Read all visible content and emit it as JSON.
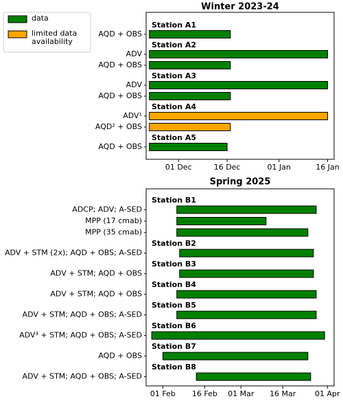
{
  "chart_data": [
    {
      "type": "timeline",
      "title": "Winter 2023-24",
      "legend": [
        {
          "name": "data",
          "color": "#008000"
        },
        {
          "name": "limited data availability",
          "color": "#ffa500"
        }
      ],
      "xlim": [
        -10,
        48
      ],
      "xticks": [
        {
          "value": 0,
          "label": "01 Dec"
        },
        {
          "value": 15,
          "label": "16 Dec"
        },
        {
          "value": 31,
          "label": "01 Jan"
        },
        {
          "value": 46,
          "label": "16 Jan"
        }
      ],
      "groups": [
        {
          "name": "Station A1",
          "rows": [
            {
              "label": "AQD + OBS",
              "start": -9,
              "end": 16,
              "color": "#008000"
            }
          ]
        },
        {
          "name": "Station A2",
          "rows": [
            {
              "label": "ADV",
              "start": -9,
              "end": 46,
              "color": "#008000"
            },
            {
              "label": "AQD + OBS",
              "start": -9,
              "end": 16,
              "color": "#008000"
            }
          ]
        },
        {
          "name": "Station A3",
          "rows": [
            {
              "label": "ADV",
              "start": -9,
              "end": 46,
              "color": "#008000"
            },
            {
              "label": "AQD + OBS",
              "start": -9,
              "end": 16,
              "color": "#008000"
            }
          ]
        },
        {
          "name": "Station A4",
          "rows": [
            {
              "label": "ADV¹",
              "start": -9,
              "end": 46,
              "color": "#ffa500"
            },
            {
              "label": "AQD² + OBS",
              "start": -9,
              "end": 16,
              "color": "#ffa500"
            }
          ]
        },
        {
          "name": "Station A5",
          "rows": [
            {
              "label": "AQD + OBS",
              "start": -9,
              "end": 15,
              "color": "#008000"
            }
          ]
        }
      ]
    },
    {
      "type": "timeline",
      "title": "Spring 2025",
      "xlim": [
        -6,
        61.4
      ],
      "xticks": [
        {
          "value": 0,
          "label": "01 Feb"
        },
        {
          "value": 15,
          "label": "16 Feb"
        },
        {
          "value": 28,
          "label": "01 Mar"
        },
        {
          "value": 43,
          "label": "16 Mar"
        },
        {
          "value": 59,
          "label": "01 Apr"
        }
      ],
      "groups": [
        {
          "name": "Station B1",
          "rows": [
            {
              "label": "ADCP; ADV; A-SED",
              "start": 5,
              "end": 55,
              "color": "#008000"
            },
            {
              "label": "MPP (17 cmab)",
              "start": 5,
              "end": 37,
              "color": "#008000"
            },
            {
              "label": "MPP (35 cmab)",
              "start": 5,
              "end": 52,
              "color": "#008000"
            }
          ]
        },
        {
          "name": "Station B2",
          "rows": [
            {
              "label": "ADV + STM (2x); AQD + OBS; A-SED",
              "start": 6,
              "end": 54,
              "color": "#008000"
            }
          ]
        },
        {
          "name": "Station B3",
          "rows": [
            {
              "label": "ADV + STM; AQD + OBS",
              "start": 6,
              "end": 54,
              "color": "#008000"
            }
          ]
        },
        {
          "name": "Station B4",
          "rows": [
            {
              "label": "ADV + STM; AQD + OBS",
              "start": 5,
              "end": 55,
              "color": "#008000"
            }
          ]
        },
        {
          "name": "Station B5",
          "rows": [
            {
              "label": "ADV + STM; AQD + OBS; A-SED",
              "start": 5,
              "end": 55,
              "color": "#008000"
            }
          ]
        },
        {
          "name": "Station B6",
          "rows": [
            {
              "label": "ADV³ + STM; AQD + OBS; A-SED",
              "start": -4,
              "end": 58,
              "color": "#008000"
            }
          ]
        },
        {
          "name": "Station B7",
          "rows": [
            {
              "label": "AQD + OBS",
              "start": 0,
              "end": 52,
              "color": "#008000"
            }
          ]
        },
        {
          "name": "Station B8",
          "rows": [
            {
              "label": "ADV + STM; AQD + OBS; A-SED",
              "start": 12,
              "end": 53,
              "color": "#008000"
            }
          ]
        }
      ]
    }
  ]
}
